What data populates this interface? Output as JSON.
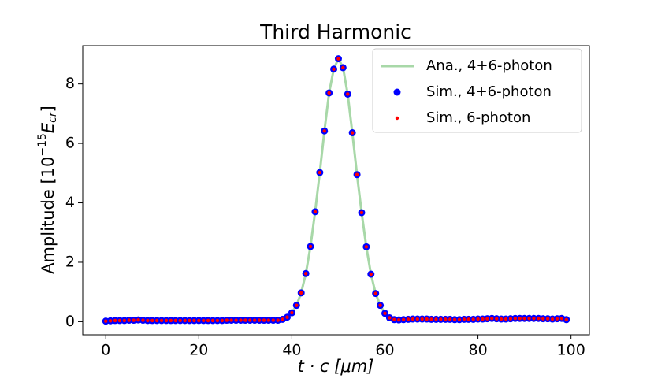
{
  "chart_data": {
    "type": "line-scatter",
    "title": "Third Harmonic",
    "xlabel": "t · c [μm]",
    "ylabel": [
      "Amplitude [10",
      "−15",
      "E",
      "cr",
      "]"
    ],
    "xlim": [
      -4.95,
      103.95
    ],
    "ylim": [
      -0.44,
      9.29
    ],
    "xticks": [
      0,
      20,
      40,
      60,
      80,
      100
    ],
    "yticks": [
      0,
      2,
      4,
      6,
      8
    ],
    "legend": "upper right",
    "x": [
      0,
      1,
      2,
      3,
      4,
      5,
      6,
      7,
      8,
      9,
      10,
      11,
      12,
      13,
      14,
      15,
      16,
      17,
      18,
      19,
      20,
      21,
      22,
      23,
      24,
      25,
      26,
      27,
      28,
      29,
      30,
      31,
      32,
      33,
      34,
      35,
      36,
      37,
      38,
      39,
      40,
      41,
      42,
      43,
      44,
      45,
      46,
      47,
      48,
      49,
      50,
      51,
      52,
      53,
      54,
      55,
      56,
      57,
      58,
      59,
      60,
      61,
      62,
      63,
      64,
      65,
      66,
      67,
      68,
      69,
      70,
      71,
      72,
      73,
      74,
      75,
      76,
      77,
      78,
      79,
      80,
      81,
      82,
      83,
      84,
      85,
      86,
      87,
      88,
      89,
      90,
      91,
      92,
      93,
      94,
      95,
      96,
      97,
      98,
      99
    ],
    "series": [
      {
        "name": "Ana., 4+6-photon",
        "kind": "line",
        "color": "#a8d8a8",
        "values": [
          0.02,
          0.03,
          0.04,
          0.04,
          0.04,
          0.05,
          0.05,
          0.06,
          0.05,
          0.04,
          0.04,
          0.04,
          0.04,
          0.04,
          0.04,
          0.04,
          0.04,
          0.04,
          0.04,
          0.04,
          0.04,
          0.04,
          0.04,
          0.04,
          0.04,
          0.04,
          0.05,
          0.05,
          0.05,
          0.05,
          0.05,
          0.05,
          0.05,
          0.05,
          0.05,
          0.05,
          0.05,
          0.05,
          0.08,
          0.15,
          0.3,
          0.55,
          0.97,
          1.62,
          2.53,
          3.7,
          5.02,
          6.42,
          7.7,
          8.5,
          8.85,
          8.55,
          7.66,
          6.36,
          4.95,
          3.67,
          2.52,
          1.6,
          0.95,
          0.55,
          0.28,
          0.13,
          0.07,
          0.06,
          0.07,
          0.08,
          0.09,
          0.09,
          0.09,
          0.09,
          0.08,
          0.08,
          0.08,
          0.08,
          0.08,
          0.07,
          0.07,
          0.08,
          0.08,
          0.08,
          0.09,
          0.09,
          0.1,
          0.11,
          0.1,
          0.09,
          0.09,
          0.1,
          0.11,
          0.11,
          0.11,
          0.11,
          0.11,
          0.11,
          0.1,
          0.1,
          0.09,
          0.1,
          0.11,
          0.07
        ]
      },
      {
        "name": "Sim., 4+6-photon",
        "kind": "scatter",
        "color": "#0000ff",
        "size": 4.5,
        "values": [
          0.02,
          0.03,
          0.04,
          0.04,
          0.04,
          0.05,
          0.05,
          0.06,
          0.05,
          0.04,
          0.04,
          0.04,
          0.04,
          0.04,
          0.04,
          0.04,
          0.04,
          0.04,
          0.04,
          0.04,
          0.04,
          0.04,
          0.04,
          0.04,
          0.04,
          0.04,
          0.05,
          0.05,
          0.05,
          0.05,
          0.05,
          0.05,
          0.05,
          0.05,
          0.05,
          0.05,
          0.05,
          0.05,
          0.08,
          0.15,
          0.3,
          0.55,
          0.97,
          1.62,
          2.53,
          3.7,
          5.02,
          6.42,
          7.7,
          8.5,
          8.85,
          8.55,
          7.66,
          6.36,
          4.95,
          3.67,
          2.52,
          1.6,
          0.95,
          0.55,
          0.28,
          0.13,
          0.07,
          0.06,
          0.07,
          0.08,
          0.09,
          0.09,
          0.09,
          0.09,
          0.08,
          0.08,
          0.08,
          0.08,
          0.08,
          0.07,
          0.07,
          0.08,
          0.08,
          0.08,
          0.09,
          0.09,
          0.1,
          0.11,
          0.1,
          0.09,
          0.09,
          0.1,
          0.11,
          0.11,
          0.11,
          0.11,
          0.11,
          0.11,
          0.1,
          0.1,
          0.09,
          0.1,
          0.11,
          0.07
        ]
      },
      {
        "name": "Sim., 6-photon",
        "kind": "scatter",
        "color": "#ff0000",
        "size": 2.2,
        "values": [
          0.02,
          0.03,
          0.04,
          0.04,
          0.04,
          0.05,
          0.05,
          0.06,
          0.05,
          0.04,
          0.04,
          0.04,
          0.04,
          0.04,
          0.04,
          0.04,
          0.04,
          0.04,
          0.04,
          0.04,
          0.04,
          0.04,
          0.04,
          0.04,
          0.04,
          0.04,
          0.05,
          0.05,
          0.05,
          0.05,
          0.05,
          0.05,
          0.05,
          0.05,
          0.05,
          0.05,
          0.05,
          0.05,
          0.08,
          0.15,
          0.3,
          0.55,
          0.97,
          1.62,
          2.53,
          3.7,
          5.02,
          6.42,
          7.7,
          8.5,
          8.85,
          8.55,
          7.66,
          6.36,
          4.95,
          3.67,
          2.52,
          1.6,
          0.95,
          0.55,
          0.28,
          0.13,
          0.07,
          0.06,
          0.07,
          0.08,
          0.09,
          0.09,
          0.09,
          0.09,
          0.08,
          0.08,
          0.08,
          0.08,
          0.08,
          0.07,
          0.07,
          0.08,
          0.08,
          0.08,
          0.09,
          0.09,
          0.1,
          0.11,
          0.1,
          0.09,
          0.09,
          0.1,
          0.11,
          0.11,
          0.11,
          0.11,
          0.11,
          0.11,
          0.1,
          0.1,
          0.09,
          0.1,
          0.11,
          0.07
        ]
      }
    ]
  }
}
